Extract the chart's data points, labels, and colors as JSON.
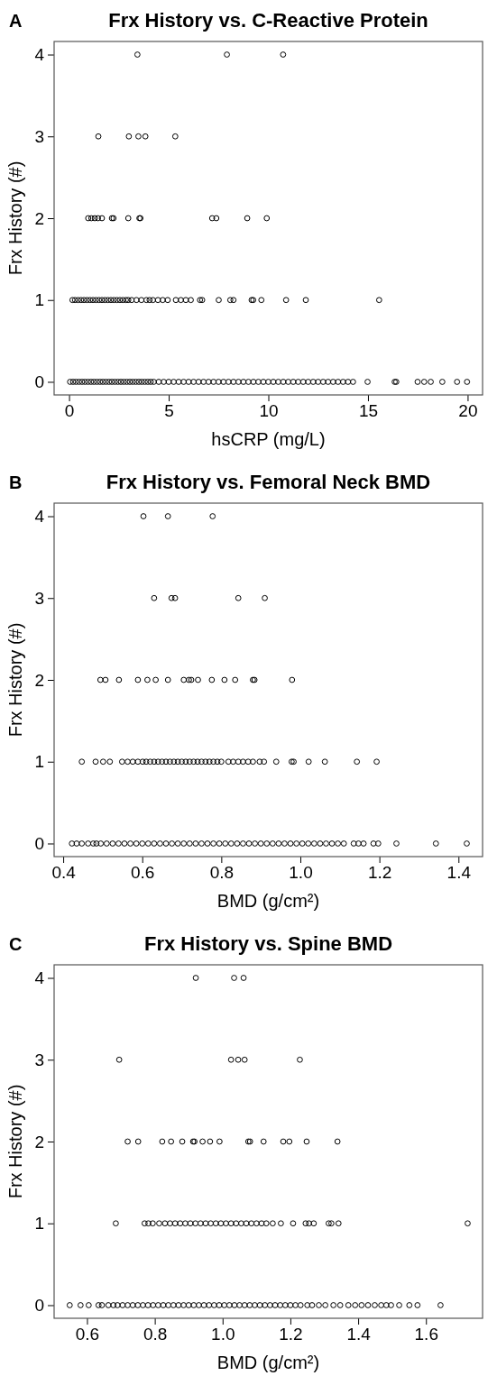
{
  "chart_data": [
    {
      "type": "scatter",
      "title": "Frx History vs. C-Reactive Protein",
      "annotations": [
        "A"
      ],
      "xlabel": "hsCRP (mg/L)",
      "ylabel": "Frx History (#)",
      "xlim": [
        -0.75,
        20.75
      ],
      "xticks": [
        0,
        5,
        10,
        15,
        20
      ],
      "ylim": [
        -0.16,
        4.16
      ],
      "yticks": [
        0,
        1,
        2,
        3,
        4
      ],
      "marker": "circle",
      "series": [
        {
          "color": "#000000",
          "x": [
            3.43,
            7.92,
            10.74
          ],
          "values": [
            4,
            4,
            4
          ]
        },
        {
          "color": "#000000",
          "x": [
            1.47,
            3.0,
            3.48,
            3.83,
            5.33
          ],
          "values": [
            3,
            3,
            3,
            3,
            3
          ]
        },
        {
          "color": "#000000",
          "x": [
            0.96,
            1.12,
            1.29,
            1.45,
            1.65,
            2.15,
            2.23,
            2.97,
            3.53,
            3.58,
            7.18,
            7.39,
            8.94,
            9.92
          ],
          "values": [
            2,
            2,
            2,
            2,
            2,
            2,
            2,
            2,
            2,
            2,
            2,
            2,
            2,
            2
          ]
        },
        {
          "color": "#000000",
          "x": [
            0.17,
            0.3,
            0.45,
            0.6,
            0.75,
            0.9,
            1.05,
            1.2,
            1.35,
            1.5,
            1.65,
            1.8,
            1.95,
            2.1,
            2.25,
            2.4,
            2.55,
            2.7,
            2.85,
            2.97,
            3.14,
            3.38,
            3.63,
            3.88,
            4.04,
            4.21,
            4.46,
            4.7,
            4.95,
            5.36,
            5.61,
            5.86,
            6.11,
            6.57,
            6.68,
            7.51,
            8.09,
            8.25,
            9.16,
            9.24,
            9.65,
            10.89,
            11.88,
            15.56
          ],
          "values": [
            1,
            1,
            1,
            1,
            1,
            1,
            1,
            1,
            1,
            1,
            1,
            1,
            1,
            1,
            1,
            1,
            1,
            1,
            1,
            1,
            1,
            1,
            1,
            1,
            1,
            1,
            1,
            1,
            1,
            1,
            1,
            1,
            1,
            1,
            1,
            1,
            1,
            1,
            1,
            1,
            1,
            1,
            1,
            1
          ]
        },
        {
          "color": "#000000",
          "x": [
            0.05,
            0.2,
            0.35,
            0.5,
            0.65,
            0.8,
            0.95,
            1.1,
            1.25,
            1.4,
            1.55,
            1.7,
            1.85,
            2,
            2.15,
            2.3,
            2.45,
            2.6,
            2.75,
            2.9,
            3.05,
            3.2,
            3.35,
            3.5,
            3.65,
            3.8,
            3.95,
            4.1,
            4.25,
            4.5,
            4.75,
            5,
            5.25,
            5.5,
            5.75,
            6,
            6.25,
            6.5,
            6.75,
            7,
            7.25,
            7.5,
            7.75,
            8,
            8.25,
            8.5,
            8.75,
            9,
            9.25,
            9.5,
            9.75,
            10,
            10.25,
            10.5,
            10.75,
            11,
            11.25,
            11.5,
            11.75,
            12,
            12.25,
            12.5,
            12.75,
            13,
            13.25,
            13.5,
            13.75,
            14,
            14.25,
            14.98,
            16.34,
            16.42,
            17.49,
            17.82,
            18.15,
            18.73,
            19.47,
            19.97
          ],
          "values": [
            0,
            0,
            0,
            0,
            0,
            0,
            0,
            0,
            0,
            0,
            0,
            0,
            0,
            0,
            0,
            0,
            0,
            0,
            0,
            0,
            0,
            0,
            0,
            0,
            0,
            0,
            0,
            0,
            0,
            0,
            0,
            0,
            0,
            0,
            0,
            0,
            0,
            0,
            0,
            0,
            0,
            0,
            0,
            0,
            0,
            0,
            0,
            0,
            0,
            0,
            0,
            0,
            0,
            0,
            0,
            0,
            0,
            0,
            0,
            0,
            0,
            0,
            0,
            0,
            0,
            0,
            0,
            0,
            0,
            0,
            0,
            0,
            0,
            0,
            0,
            0,
            0,
            0
          ]
        }
      ]
    },
    {
      "type": "scatter",
      "title": "Frx History vs. Femoral Neck BMD",
      "annotations": [
        "B"
      ],
      "xlabel": "BMD (g/cm²)",
      "ylabel": "Frx History (#)",
      "xlim": [
        0.377,
        1.461
      ],
      "xticks": [
        0.4,
        0.6,
        0.8,
        {
          "value": 1,
          "label": "1.0"
        },
        1.2,
        1.4
      ],
      "ylim": [
        -0.16,
        4.16
      ],
      "yticks": [
        0,
        1,
        2,
        3,
        4
      ],
      "marker": "circle",
      "series": [
        {
          "color": "#000000",
          "x": [
            0.603,
            0.665,
            0.778
          ],
          "values": [
            4,
            4,
            4
          ]
        },
        {
          "color": "#000000",
          "x": [
            0.63,
            0.674,
            0.683,
            0.843,
            0.91
          ],
          "values": [
            3,
            3,
            3,
            3,
            3
          ]
        },
        {
          "color": "#000000",
          "x": [
            0.494,
            0.507,
            0.541,
            0.589,
            0.613,
            0.634,
            0.665,
            0.705,
            0.718,
            0.724,
            0.741,
            0.776,
            0.808,
            0.835,
            0.88,
            0.884,
            0.979
          ],
          "values": [
            2,
            2,
            2,
            2,
            2,
            2,
            2,
            2,
            2,
            2,
            2,
            2,
            2,
            2,
            2,
            2,
            2
          ]
        },
        {
          "color": "#000000",
          "x": [
            0.447,
            0.482,
            0.501,
            0.518,
            0.549,
            0.563,
            0.576,
            0.589,
            0.601,
            0.61,
            0.62,
            0.63,
            0.64,
            0.65,
            0.66,
            0.67,
            0.68,
            0.69,
            0.7,
            0.71,
            0.72,
            0.73,
            0.74,
            0.75,
            0.76,
            0.77,
            0.78,
            0.79,
            0.8,
            0.818,
            0.83,
            0.843,
            0.855,
            0.868,
            0.88,
            0.897,
            0.908,
            0.939,
            0.978,
            0.983,
            1.021,
            1.062,
            1.143,
            1.193
          ],
          "values": [
            1,
            1,
            1,
            1,
            1,
            1,
            1,
            1,
            1,
            1,
            1,
            1,
            1,
            1,
            1,
            1,
            1,
            1,
            1,
            1,
            1,
            1,
            1,
            1,
            1,
            1,
            1,
            1,
            1,
            1,
            1,
            1,
            1,
            1,
            1,
            1,
            1,
            1,
            1,
            1,
            1,
            1,
            1,
            1
          ]
        },
        {
          "color": "#000000",
          "x": [
            0.422,
            0.434,
            0.447,
            0.463,
            0.476,
            0.484,
            0.495,
            0.51,
            0.525,
            0.54,
            0.555,
            0.57,
            0.585,
            0.6,
            0.615,
            0.63,
            0.645,
            0.66,
            0.675,
            0.69,
            0.705,
            0.72,
            0.735,
            0.75,
            0.765,
            0.78,
            0.795,
            0.81,
            0.825,
            0.84,
            0.855,
            0.87,
            0.885,
            0.9,
            0.915,
            0.93,
            0.945,
            0.96,
            0.975,
            0.99,
            1.005,
            1.02,
            1.035,
            1.05,
            1.065,
            1.08,
            1.095,
            1.11,
            1.135,
            1.147,
            1.16,
            1.185,
            1.197,
            1.243,
            1.343,
            1.421
          ],
          "values": [
            0,
            0,
            0,
            0,
            0,
            0,
            0,
            0,
            0,
            0,
            0,
            0,
            0,
            0,
            0,
            0,
            0,
            0,
            0,
            0,
            0,
            0,
            0,
            0,
            0,
            0,
            0,
            0,
            0,
            0,
            0,
            0,
            0,
            0,
            0,
            0,
            0,
            0,
            0,
            0,
            0,
            0,
            0,
            0,
            0,
            0,
            0,
            0,
            0,
            0,
            0,
            0,
            0,
            0,
            0,
            0
          ]
        }
      ]
    },
    {
      "type": "scatter",
      "title": "Frx History vs. Spine BMD",
      "annotations": [
        "C"
      ],
      "xlabel": "BMD (g/cm²)",
      "ylabel": "Frx History (#)",
      "xlim": [
        0.503,
        1.767
      ],
      "xticks": [
        0.6,
        0.8,
        {
          "value": 1,
          "label": "1.0"
        },
        1.2,
        1.4,
        1.6
      ],
      "ylim": [
        -0.16,
        4.16
      ],
      "yticks": [
        0,
        1,
        2,
        3,
        4
      ],
      "marker": "circle",
      "series": [
        {
          "color": "#000000",
          "x": [
            0.921,
            1.034,
            1.062
          ],
          "values": [
            4,
            4,
            4
          ]
        },
        {
          "color": "#000000",
          "x": [
            0.695,
            1.025,
            1.046,
            1.065,
            1.228
          ],
          "values": [
            3,
            3,
            3,
            3,
            3
          ]
        },
        {
          "color": "#000000",
          "x": [
            0.72,
            0.751,
            0.822,
            0.848,
            0.881,
            0.913,
            0.917,
            0.941,
            0.963,
            0.991,
            1.076,
            1.081,
            1.121,
            1.179,
            1.197,
            1.248,
            1.339
          ],
          "values": [
            2,
            2,
            2,
            2,
            2,
            2,
            2,
            2,
            2,
            2,
            2,
            2,
            2,
            2,
            2,
            2,
            2
          ]
        },
        {
          "color": "#000000",
          "x": [
            0.685,
            0.77,
            0.781,
            0.794,
            0.813,
            0.83,
            0.845,
            0.86,
            0.875,
            0.89,
            0.905,
            0.92,
            0.935,
            0.95,
            0.965,
            0.98,
            0.995,
            1.01,
            1.025,
            1.04,
            1.055,
            1.07,
            1.085,
            1.1,
            1.115,
            1.129,
            1.148,
            1.172,
            1.208,
            1.245,
            1.255,
            1.269,
            1.313,
            1.321,
            1.342,
            1.723
          ],
          "values": [
            1,
            1,
            1,
            1,
            1,
            1,
            1,
            1,
            1,
            1,
            1,
            1,
            1,
            1,
            1,
            1,
            1,
            1,
            1,
            1,
            1,
            1,
            1,
            1,
            1,
            1,
            1,
            1,
            1,
            1,
            1,
            1,
            1,
            1,
            1,
            1
          ]
        },
        {
          "color": "#000000",
          "x": [
            0.549,
            0.581,
            0.605,
            0.634,
            0.644,
            0.663,
            0.678,
            0.69,
            0.705,
            0.72,
            0.735,
            0.75,
            0.765,
            0.78,
            0.795,
            0.81,
            0.825,
            0.84,
            0.855,
            0.87,
            0.885,
            0.9,
            0.915,
            0.93,
            0.945,
            0.96,
            0.975,
            0.99,
            1.005,
            1.02,
            1.035,
            1.05,
            1.065,
            1.08,
            1.095,
            1.11,
            1.125,
            1.14,
            1.155,
            1.17,
            1.185,
            1.2,
            1.215,
            1.23,
            1.25,
            1.264,
            1.284,
            1.303,
            1.327,
            1.347,
            1.371,
            1.391,
            1.41,
            1.429,
            1.449,
            1.468,
            1.483,
            1.497,
            1.521,
            1.551,
            1.575,
            1.643
          ],
          "values": [
            0,
            0,
            0,
            0,
            0,
            0,
            0,
            0,
            0,
            0,
            0,
            0,
            0,
            0,
            0,
            0,
            0,
            0,
            0,
            0,
            0,
            0,
            0,
            0,
            0,
            0,
            0,
            0,
            0,
            0,
            0,
            0,
            0,
            0,
            0,
            0,
            0,
            0,
            0,
            0,
            0,
            0,
            0,
            0,
            0,
            0,
            0,
            0,
            0,
            0,
            0,
            0,
            0,
            0,
            0,
            0,
            0,
            0,
            0,
            0,
            0,
            0
          ]
        }
      ]
    }
  ]
}
